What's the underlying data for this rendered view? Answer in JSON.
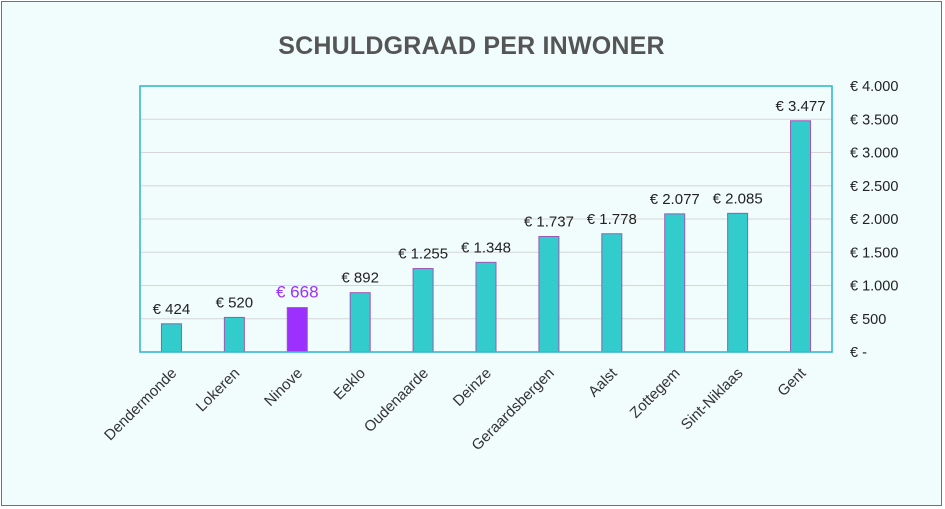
{
  "chart_data": {
    "type": "bar",
    "title": "SCHULDGRAAD PER INWONER",
    "categories": [
      "Dendermonde",
      "Lokeren",
      "Ninove",
      "Eeklo",
      "Oudenaarde",
      "Deinze",
      "Geraardsbergen",
      "Aalst",
      "Zottegem",
      "Sint-Niklaas",
      "Gent"
    ],
    "values": [
      424,
      520,
      668,
      892,
      1255,
      1348,
      1737,
      1778,
      2077,
      2085,
      3477
    ],
    "data_labels": [
      "€ 424",
      "€ 520",
      "€ 668",
      "€ 892",
      "€ 1.255",
      "€ 1.348",
      "€ 1.737",
      "€ 1.778",
      "€ 2.077",
      "€ 2.085",
      "€ 3.477"
    ],
    "highlight_category": "Ninove",
    "ylim": [
      0,
      4000
    ],
    "yticks": [
      0,
      500,
      1000,
      1500,
      2000,
      2500,
      3000,
      3500,
      4000
    ],
    "ytick_labels": [
      "€ -",
      "€ 500",
      "€ 1.000",
      "€ 1.500",
      "€ 2.000",
      "€ 2.500",
      "€ 3.000",
      "€ 3.500",
      "€ 4.000"
    ],
    "y_axis_side": "right",
    "grid": true,
    "legend": "none",
    "xlabel": "",
    "ylabel": ""
  },
  "colors": {
    "bar_fill": "#33cccc",
    "bar_outline": "#9b59b6",
    "highlight_fill": "#9b30ff",
    "highlight_label": "#9b30ff",
    "plot_border": "#35b9d2",
    "gridline": "#d6d6d6",
    "background": "#f1fcfc",
    "frame": "#8a5aa6"
  }
}
